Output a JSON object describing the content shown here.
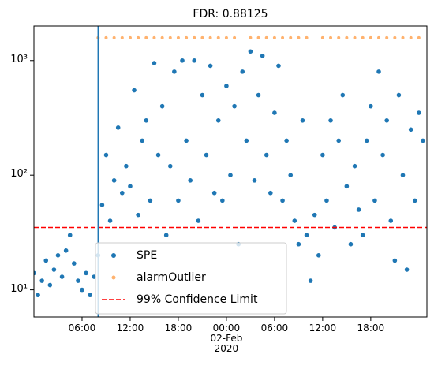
{
  "chart_data": {
    "type": "scatter",
    "title": "FDR: 0.88125",
    "log_y": true,
    "legend_position": "lower center",
    "xlim": [
      "2020-02-01T00:00",
      "2020-02-03T01:00"
    ],
    "ylim": [
      5.8,
      2000
    ],
    "xticks": [
      {
        "value": "2020-02-01T06:00",
        "label": "06:00"
      },
      {
        "value": "2020-02-01T12:00",
        "label": "12:00"
      },
      {
        "value": "2020-02-01T18:00",
        "label": "18:00"
      },
      {
        "value": "2020-02-02T00:00",
        "label": "00:00\n02-Feb\n2020"
      },
      {
        "value": "2020-02-02T06:00",
        "label": "06:00"
      },
      {
        "value": "2020-02-02T12:00",
        "label": "12:00"
      },
      {
        "value": "2020-02-02T18:00",
        "label": "18:00"
      }
    ],
    "yticks": [
      {
        "value": 10,
        "label": "10¹"
      },
      {
        "value": 100,
        "label": "10²"
      },
      {
        "value": 1000,
        "label": "10³"
      }
    ],
    "vline": {
      "x": "2020-02-01T08:00",
      "color": "#1f77b4"
    },
    "series": [
      {
        "name": "SPE",
        "color": "#1f77b4",
        "x": [
          "2020-02-01T00:00",
          "2020-02-01T00:30",
          "2020-02-01T01:00",
          "2020-02-01T01:30",
          "2020-02-01T02:00",
          "2020-02-01T02:30",
          "2020-02-01T03:00",
          "2020-02-01T03:30",
          "2020-02-01T04:00",
          "2020-02-01T04:30",
          "2020-02-01T05:00",
          "2020-02-01T05:30",
          "2020-02-01T06:00",
          "2020-02-01T06:30",
          "2020-02-01T07:00",
          "2020-02-01T07:30",
          "2020-02-01T08:00",
          "2020-02-01T08:30",
          "2020-02-01T09:00",
          "2020-02-01T09:30",
          "2020-02-01T10:00",
          "2020-02-01T10:30",
          "2020-02-01T11:00",
          "2020-02-01T11:30",
          "2020-02-01T12:00",
          "2020-02-01T12:30",
          "2020-02-01T13:00",
          "2020-02-01T13:30",
          "2020-02-01T14:00",
          "2020-02-01T14:30",
          "2020-02-01T15:00",
          "2020-02-01T15:30",
          "2020-02-01T16:00",
          "2020-02-01T16:30",
          "2020-02-01T17:00",
          "2020-02-01T17:30",
          "2020-02-01T18:00",
          "2020-02-01T18:30",
          "2020-02-01T19:00",
          "2020-02-01T19:30",
          "2020-02-01T20:00",
          "2020-02-01T20:30",
          "2020-02-01T21:00",
          "2020-02-01T21:30",
          "2020-02-01T22:00",
          "2020-02-01T22:30",
          "2020-02-01T23:00",
          "2020-02-01T23:30",
          "2020-02-02T00:00",
          "2020-02-02T00:30",
          "2020-02-02T01:00",
          "2020-02-02T01:30",
          "2020-02-02T02:00",
          "2020-02-02T02:30",
          "2020-02-02T03:00",
          "2020-02-02T03:30",
          "2020-02-02T04:00",
          "2020-02-02T04:30",
          "2020-02-02T05:00",
          "2020-02-02T05:30",
          "2020-02-02T06:00",
          "2020-02-02T06:30",
          "2020-02-02T07:00",
          "2020-02-02T07:30",
          "2020-02-02T08:00",
          "2020-02-02T08:30",
          "2020-02-02T09:00",
          "2020-02-02T09:30",
          "2020-02-02T10:00",
          "2020-02-02T10:30",
          "2020-02-02T11:00",
          "2020-02-02T11:30",
          "2020-02-02T12:00",
          "2020-02-02T12:30",
          "2020-02-02T13:00",
          "2020-02-02T13:30",
          "2020-02-02T14:00",
          "2020-02-02T14:30",
          "2020-02-02T15:00",
          "2020-02-02T15:30",
          "2020-02-02T16:00",
          "2020-02-02T16:30",
          "2020-02-02T17:00",
          "2020-02-02T17:30",
          "2020-02-02T18:00",
          "2020-02-02T18:30",
          "2020-02-02T19:00",
          "2020-02-02T19:30",
          "2020-02-02T20:00",
          "2020-02-02T20:30",
          "2020-02-02T21:00",
          "2020-02-02T21:30",
          "2020-02-02T22:00",
          "2020-02-02T22:30",
          "2020-02-02T23:00",
          "2020-02-02T23:30",
          "2020-02-03T00:00",
          "2020-02-03T00:30"
        ],
        "values": [
          14,
          9,
          12,
          18,
          11,
          15,
          20,
          13,
          22,
          30,
          17,
          12,
          10,
          14,
          9,
          13,
          20,
          55,
          150,
          40,
          90,
          260,
          70,
          120,
          80,
          550,
          45,
          200,
          300,
          60,
          950,
          150,
          400,
          30,
          120,
          800,
          60,
          1000,
          200,
          90,
          1000,
          40,
          500,
          150,
          900,
          70,
          300,
          60,
          600,
          100,
          400,
          25,
          800,
          200,
          1200,
          90,
          500,
          1100,
          150,
          70,
          350,
          900,
          60,
          200,
          100,
          40,
          25,
          300,
          30,
          12,
          45,
          20,
          150,
          60,
          300,
          35,
          200,
          500,
          80,
          25,
          120,
          50,
          30,
          200,
          400,
          60,
          800,
          150,
          300,
          40,
          18,
          500,
          100,
          15,
          250,
          60,
          350,
          200
        ]
      },
      {
        "name": "alarmOutlier",
        "color": "#ff7f0e",
        "x": [
          "2020-02-01T08:00",
          "2020-02-01T09:00",
          "2020-02-01T10:00",
          "2020-02-01T11:00",
          "2020-02-01T12:00",
          "2020-02-01T13:00",
          "2020-02-01T14:00",
          "2020-02-01T15:00",
          "2020-02-01T16:00",
          "2020-02-01T17:00",
          "2020-02-01T18:00",
          "2020-02-01T19:00",
          "2020-02-01T20:00",
          "2020-02-01T21:00",
          "2020-02-01T22:00",
          "2020-02-01T23:00",
          "2020-02-02T00:00",
          "2020-02-02T01:00",
          "2020-02-02T03:00",
          "2020-02-02T04:00",
          "2020-02-02T05:00",
          "2020-02-02T06:00",
          "2020-02-02T07:00",
          "2020-02-02T08:00",
          "2020-02-02T09:00",
          "2020-02-02T10:00",
          "2020-02-02T12:00",
          "2020-02-02T13:00",
          "2020-02-02T14:00",
          "2020-02-02T15:00",
          "2020-02-02T16:00",
          "2020-02-02T17:00",
          "2020-02-02T18:00",
          "2020-02-02T19:00",
          "2020-02-02T20:00",
          "2020-02-02T21:00",
          "2020-02-02T22:00",
          "2020-02-02T23:00",
          "2020-02-03T00:00"
        ],
        "values": [
          1580,
          1580,
          1580,
          1580,
          1580,
          1580,
          1580,
          1580,
          1580,
          1580,
          1580,
          1580,
          1580,
          1580,
          1580,
          1580,
          1580,
          1580,
          1580,
          1580,
          1580,
          1580,
          1580,
          1580,
          1580,
          1580,
          1580,
          1580,
          1580,
          1580,
          1580,
          1580,
          1580,
          1580,
          1580,
          1580,
          1580,
          1580,
          1580
        ]
      },
      {
        "name": "99% Confidence Limit",
        "color": "#ff0000",
        "hline": 35
      }
    ]
  }
}
